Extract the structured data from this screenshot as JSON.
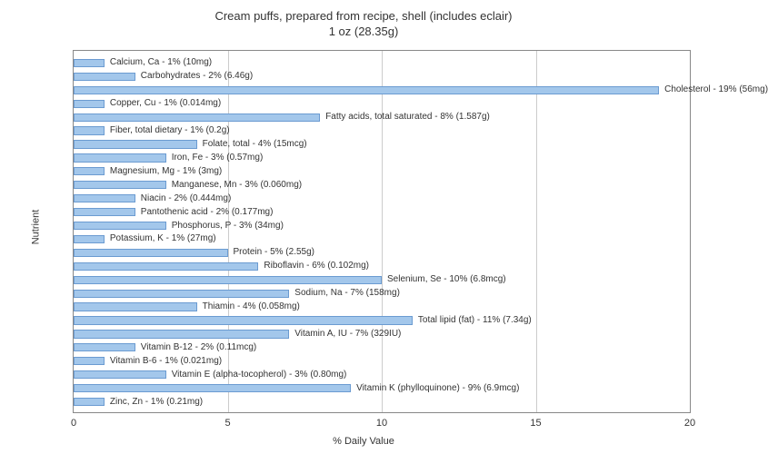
{
  "chart": {
    "type": "bar-horizontal",
    "title_line1": "Cream puffs, prepared from recipe, shell (includes eclair)",
    "title_line2": "1 oz (28.35g)",
    "y_axis_label": "Nutrient",
    "x_axis_label": "% Daily Value",
    "title_fontsize": 13,
    "label_fontsize": 11,
    "bar_label_fontsize": 10,
    "xlim": [
      0,
      20
    ],
    "xtick_step": 5,
    "xticks": [
      0,
      5,
      10,
      15,
      20
    ],
    "background_color": "#ffffff",
    "grid_color": "#cccccc",
    "border_color": "#888888",
    "bar_fill": "#a3c7eb",
    "bar_stroke": "#6b9bd1",
    "nutrients": [
      {
        "label": "Calcium, Ca - 1% (10mg)",
        "value": 1
      },
      {
        "label": "Carbohydrates - 2% (6.46g)",
        "value": 2
      },
      {
        "label": "Cholesterol - 19% (56mg)",
        "value": 19
      },
      {
        "label": "Copper, Cu - 1% (0.014mg)",
        "value": 1
      },
      {
        "label": "Fatty acids, total saturated - 8% (1.587g)",
        "value": 8
      },
      {
        "label": "Fiber, total dietary - 1% (0.2g)",
        "value": 1
      },
      {
        "label": "Folate, total - 4% (15mcg)",
        "value": 4
      },
      {
        "label": "Iron, Fe - 3% (0.57mg)",
        "value": 3
      },
      {
        "label": "Magnesium, Mg - 1% (3mg)",
        "value": 1
      },
      {
        "label": "Manganese, Mn - 3% (0.060mg)",
        "value": 3
      },
      {
        "label": "Niacin - 2% (0.444mg)",
        "value": 2
      },
      {
        "label": "Pantothenic acid - 2% (0.177mg)",
        "value": 2
      },
      {
        "label": "Phosphorus, P - 3% (34mg)",
        "value": 3
      },
      {
        "label": "Potassium, K - 1% (27mg)",
        "value": 1
      },
      {
        "label": "Protein - 5% (2.55g)",
        "value": 5
      },
      {
        "label": "Riboflavin - 6% (0.102mg)",
        "value": 6
      },
      {
        "label": "Selenium, Se - 10% (6.8mcg)",
        "value": 10
      },
      {
        "label": "Sodium, Na - 7% (158mg)",
        "value": 7
      },
      {
        "label": "Thiamin - 4% (0.058mg)",
        "value": 4
      },
      {
        "label": "Total lipid (fat) - 11% (7.34g)",
        "value": 11
      },
      {
        "label": "Vitamin A, IU - 7% (329IU)",
        "value": 7
      },
      {
        "label": "Vitamin B-12 - 2% (0.11mcg)",
        "value": 2
      },
      {
        "label": "Vitamin B-6 - 1% (0.021mg)",
        "value": 1
      },
      {
        "label": "Vitamin E (alpha-tocopherol) - 3% (0.80mg)",
        "value": 3
      },
      {
        "label": "Vitamin K (phylloquinone) - 9% (6.9mcg)",
        "value": 9
      },
      {
        "label": "Zinc, Zn - 1% (0.21mg)",
        "value": 1
      }
    ]
  }
}
